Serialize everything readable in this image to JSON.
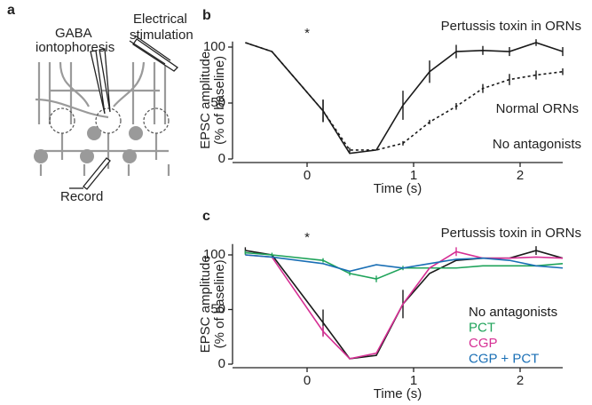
{
  "panel_a": {
    "label": "a",
    "gaba": [
      "GABA",
      "iontophoresis"
    ],
    "stimulation": [
      "Electrical",
      "stimulation"
    ],
    "record": "Record"
  },
  "chart_data": [
    {
      "type": "line",
      "label": "b",
      "marker": "*",
      "xlabel": "Time (s)",
      "ylabel": [
        "EPSC amplitude",
        "(% of baseline)"
      ],
      "annotation": "No antagonists",
      "xlim": [
        -0.7,
        2.4
      ],
      "ylim": [
        0,
        105
      ],
      "xticks": [
        0,
        1,
        2
      ],
      "yticks": [
        0,
        50,
        100
      ],
      "x": [
        -0.58,
        -0.33,
        0.15,
        0.4,
        0.65,
        0.9,
        1.15,
        1.4,
        1.65,
        1.9,
        2.15,
        2.4
      ],
      "series": [
        {
          "name": "Pertussis toxin in ORNs",
          "color": "#1a1a1a",
          "dash": false,
          "values": [
            104,
            96,
            43,
            5,
            8,
            48,
            78,
            96,
            97,
            96,
            104,
            96
          ],
          "errors": [
            null,
            null,
            10,
            null,
            null,
            13,
            10,
            6,
            4,
            4,
            3,
            4
          ]
        },
        {
          "name": "Normal ORNs",
          "color": "#1a1a1a",
          "dash": true,
          "values": [
            104,
            96,
            43,
            8,
            8,
            14,
            33,
            47,
            63,
            71,
            75,
            78
          ],
          "errors": [
            null,
            null,
            10,
            2,
            null,
            2,
            2,
            3,
            4,
            5,
            4,
            3
          ]
        }
      ]
    },
    {
      "type": "line",
      "label": "c",
      "marker": "*",
      "xlabel": "Time (s)",
      "ylabel": [
        "EPSC amplitude",
        "(% of baseline)"
      ],
      "annotation": "Pertussis toxin in ORNs",
      "xlim": [
        -0.7,
        2.4
      ],
      "ylim": [
        0,
        110
      ],
      "xticks": [
        0,
        1,
        2
      ],
      "yticks": [
        0,
        50,
        100
      ],
      "x": [
        -0.58,
        -0.33,
        0.15,
        0.4,
        0.65,
        0.9,
        1.15,
        1.4,
        1.65,
        1.9,
        2.15,
        2.4
      ],
      "series": [
        {
          "name": "No antagonists",
          "color": "#1a1a1a",
          "values": [
            104,
            100,
            38,
            5,
            8,
            55,
            83,
            95,
            97,
            97,
            104,
            97
          ],
          "errors": [
            3,
            null,
            12,
            null,
            null,
            13,
            null,
            null,
            null,
            null,
            4,
            null
          ]
        },
        {
          "name": "PCT",
          "color": "#1fa35a",
          "values": [
            102,
            100,
            95,
            83,
            78,
            88,
            88,
            88,
            90,
            90,
            90,
            92
          ],
          "errors": [
            2,
            2,
            2,
            2,
            3,
            2,
            null,
            null,
            null,
            null,
            null,
            null
          ]
        },
        {
          "name": "CGP",
          "color": "#d62f94",
          "values": [
            100,
            98,
            30,
            5,
            10,
            55,
            88,
            103,
            97,
            97,
            98,
            97
          ],
          "errors": [
            null,
            null,
            5,
            null,
            null,
            null,
            null,
            4,
            null,
            null,
            null,
            null
          ]
        },
        {
          "name": "CGP + PCT",
          "color": "#1a6fb5",
          "values": [
            100,
            98,
            92,
            85,
            91,
            88,
            92,
            96,
            97,
            95,
            90,
            88
          ],
          "errors": [
            null,
            null,
            null,
            null,
            null,
            null,
            null,
            null,
            null,
            null,
            null,
            null
          ]
        }
      ]
    }
  ]
}
